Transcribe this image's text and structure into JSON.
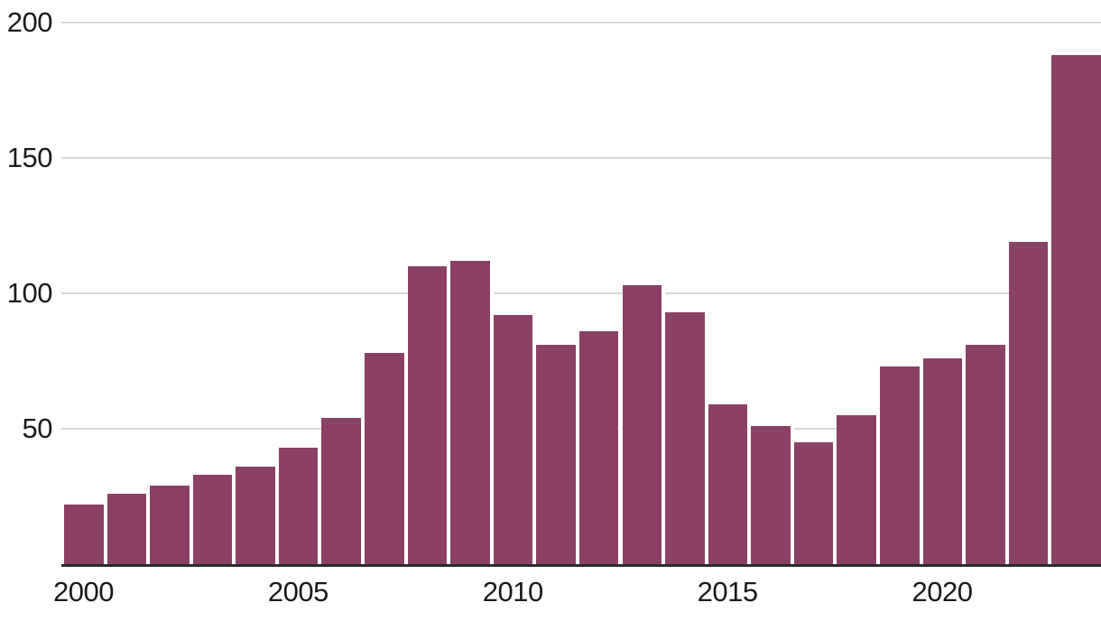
{
  "chart_data": {
    "type": "bar",
    "title": "",
    "xlabel": "",
    "ylabel": "",
    "categories": [
      "2000",
      "2001",
      "2002",
      "2003",
      "2004",
      "2005",
      "2006",
      "2007",
      "2008",
      "2009",
      "2010",
      "2011",
      "2012",
      "2013",
      "2014",
      "2015",
      "2016",
      "2017",
      "2018",
      "2019",
      "2020",
      "2021",
      "2022",
      "2023"
    ],
    "values": [
      22,
      26,
      29,
      33,
      36,
      43,
      54,
      78,
      110,
      112,
      92,
      81,
      86,
      103,
      93,
      59,
      51,
      45,
      55,
      73,
      76,
      81,
      119,
      188
    ],
    "x_tick_labels": [
      "2000",
      "2005",
      "2010",
      "2015",
      "2020"
    ],
    "y_tick_values": [
      50,
      100,
      150,
      200
    ],
    "y_tick_labels": [
      "50",
      "100",
      "150",
      "200"
    ],
    "ylim": [
      0,
      200
    ],
    "grid": "horizontal-gridlines-on",
    "legend": "none",
    "colors": {
      "bar": "#8b4065",
      "gridline": "#d8d8d8",
      "axis_line": "#2b2b2b",
      "tick_text": "#1a1a1a",
      "background": "#ffffff"
    }
  }
}
